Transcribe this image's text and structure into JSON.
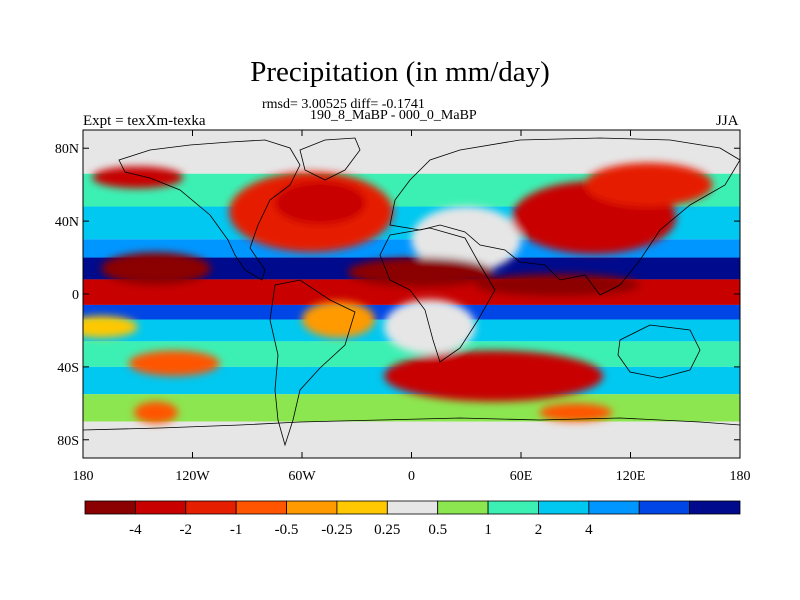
{
  "header": {
    "title": "Precipitation (in mm/day)",
    "stats": "rmsd= 3.00525 diff= -0.1741",
    "subtitle": "190_8_MaBP - 000_0_MaBP",
    "experiment": "Expt = texXm-texka",
    "season": "JJA"
  },
  "axes": {
    "lat_ticks": [
      "80N",
      "40N",
      "0",
      "40S",
      "80S"
    ],
    "lat_values": [
      80,
      40,
      0,
      -40,
      -80
    ],
    "lon_ticks": [
      "180",
      "120W",
      "60W",
      "0",
      "60E",
      "120E",
      "180"
    ],
    "lon_values": [
      -180,
      -120,
      -60,
      0,
      60,
      120,
      180
    ],
    "lon_range": [
      -180,
      180
    ],
    "lat_range": [
      -90,
      90
    ]
  },
  "colorbar": {
    "colors": [
      "#8b0000",
      "#c80000",
      "#e61e00",
      "#ff5500",
      "#ff9a00",
      "#ffc800",
      "#e6e6e6",
      "#8ce650",
      "#3cf0b4",
      "#00c8f0",
      "#0096ff",
      "#0046e6",
      "#000a8c"
    ],
    "labels": [
      "-4",
      "-2",
      "-1",
      "-0.5",
      "-0.25",
      "0.25",
      "0.5",
      "1",
      "2",
      "4"
    ],
    "levels": [
      -4,
      -2,
      -1,
      -0.5,
      -0.25,
      0.25,
      0.5,
      1,
      2,
      4
    ]
  },
  "map_fields": {
    "bands": [
      {
        "lat0": 90,
        "lat1": 66,
        "color": "#e6e6e6"
      },
      {
        "lat0": 66,
        "lat1": 48,
        "color": "#3cf0b4"
      },
      {
        "lat0": 48,
        "lat1": 30,
        "color": "#00c8f0"
      },
      {
        "lat0": 30,
        "lat1": 20,
        "color": "#0096ff"
      },
      {
        "lat0": 20,
        "lat1": 8,
        "color": "#000a8c"
      },
      {
        "lat0": 8,
        "lat1": -6,
        "color": "#c80000"
      },
      {
        "lat0": -6,
        "lat1": -14,
        "color": "#0046e6"
      },
      {
        "lat0": -14,
        "lat1": -26,
        "color": "#00c8f0"
      },
      {
        "lat0": -26,
        "lat1": -40,
        "color": "#3cf0b4"
      },
      {
        "lat0": -40,
        "lat1": -55,
        "color": "#00c8f0"
      },
      {
        "lat0": -55,
        "lat1": -70,
        "color": "#8ce650"
      },
      {
        "lat0": -70,
        "lat1": -90,
        "color": "#e6e6e6"
      }
    ],
    "blobs": [
      {
        "lon": -55,
        "lat": 45,
        "rlon": 45,
        "rlat": 22,
        "color": "#e61e00"
      },
      {
        "lon": -50,
        "lat": 50,
        "rlon": 25,
        "rlat": 12,
        "color": "#c80000"
      },
      {
        "lon": -150,
        "lat": 64,
        "rlon": 25,
        "rlat": 6,
        "color": "#c80000"
      },
      {
        "lon": 30,
        "lat": 30,
        "rlon": 30,
        "rlat": 18,
        "color": "#e6e6e6"
      },
      {
        "lon": 100,
        "lat": 42,
        "rlon": 45,
        "rlat": 20,
        "color": "#c80000"
      },
      {
        "lon": 130,
        "lat": 60,
        "rlon": 35,
        "rlat": 12,
        "color": "#e61e00"
      },
      {
        "lon": -140,
        "lat": 14,
        "rlon": 30,
        "rlat": 9,
        "color": "#8b0000"
      },
      {
        "lon": 5,
        "lat": 12,
        "rlon": 40,
        "rlat": 8,
        "color": "#8b0000"
      },
      {
        "lon": 80,
        "lat": 5,
        "rlon": 45,
        "rlat": 6,
        "color": "#8b0000"
      },
      {
        "lon": 10,
        "lat": -18,
        "rlon": 25,
        "rlat": 15,
        "color": "#e6e6e6"
      },
      {
        "lon": -40,
        "lat": -14,
        "rlon": 20,
        "rlat": 10,
        "color": "#ff9a00"
      },
      {
        "lon": 45,
        "lat": -45,
        "rlon": 60,
        "rlat": 14,
        "color": "#c80000"
      },
      {
        "lon": -130,
        "lat": -38,
        "rlon": 25,
        "rlat": 7,
        "color": "#ff5500"
      },
      {
        "lon": -140,
        "lat": -65,
        "rlon": 12,
        "rlat": 6,
        "color": "#ff5500"
      },
      {
        "lon": 90,
        "lat": -65,
        "rlon": 20,
        "rlat": 5,
        "color": "#ff5500"
      },
      {
        "lon": -170,
        "lat": -18,
        "rlon": 20,
        "rlat": 6,
        "color": "#ffc800"
      }
    ]
  }
}
